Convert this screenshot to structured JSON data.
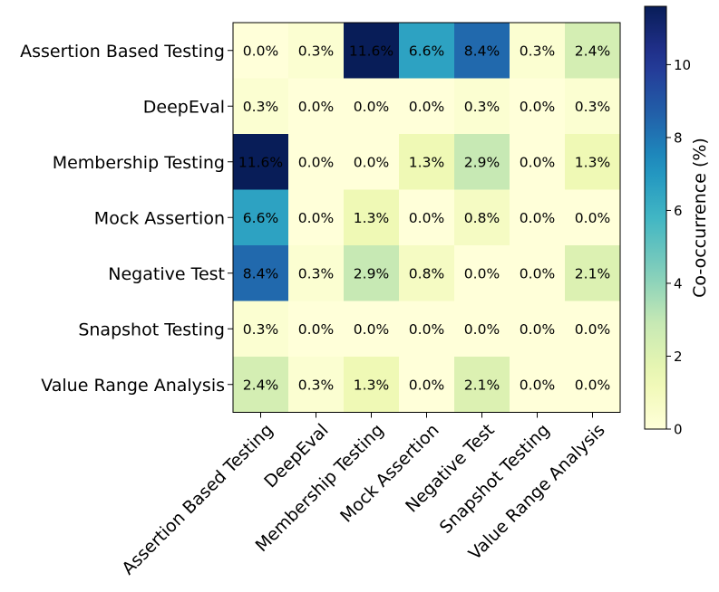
{
  "chart_data": {
    "type": "heatmap",
    "title": "",
    "row_labels": [
      "Assertion Based Testing",
      "DeepEval",
      "Membership Testing",
      "Mock Assertion",
      "Negative Test",
      "Snapshot Testing",
      "Value Range Analysis"
    ],
    "col_labels": [
      "Assertion Based Testing",
      "DeepEval",
      "Membership Testing",
      "Mock Assertion",
      "Negative Test",
      "Snapshot Testing",
      "Value Range Analysis"
    ],
    "values": [
      [
        0.0,
        0.3,
        11.6,
        6.6,
        8.4,
        0.3,
        2.4
      ],
      [
        0.3,
        0.0,
        0.0,
        0.0,
        0.3,
        0.0,
        0.3
      ],
      [
        11.6,
        0.0,
        0.0,
        1.3,
        2.9,
        0.0,
        1.3
      ],
      [
        6.6,
        0.0,
        1.3,
        0.0,
        0.8,
        0.0,
        0.0
      ],
      [
        8.4,
        0.3,
        2.9,
        0.8,
        0.0,
        0.0,
        2.1
      ],
      [
        0.3,
        0.0,
        0.0,
        0.0,
        0.0,
        0.0,
        0.0
      ],
      [
        2.4,
        0.3,
        1.3,
        0.0,
        2.1,
        0.0,
        0.0
      ]
    ],
    "value_suffix": "%",
    "colorbar": {
      "label": "Co-occurrence (%)",
      "range": [
        0,
        11.6
      ],
      "ticks": [
        0,
        2,
        4,
        6,
        8,
        10
      ],
      "colormap": "YlGnBu"
    }
  }
}
